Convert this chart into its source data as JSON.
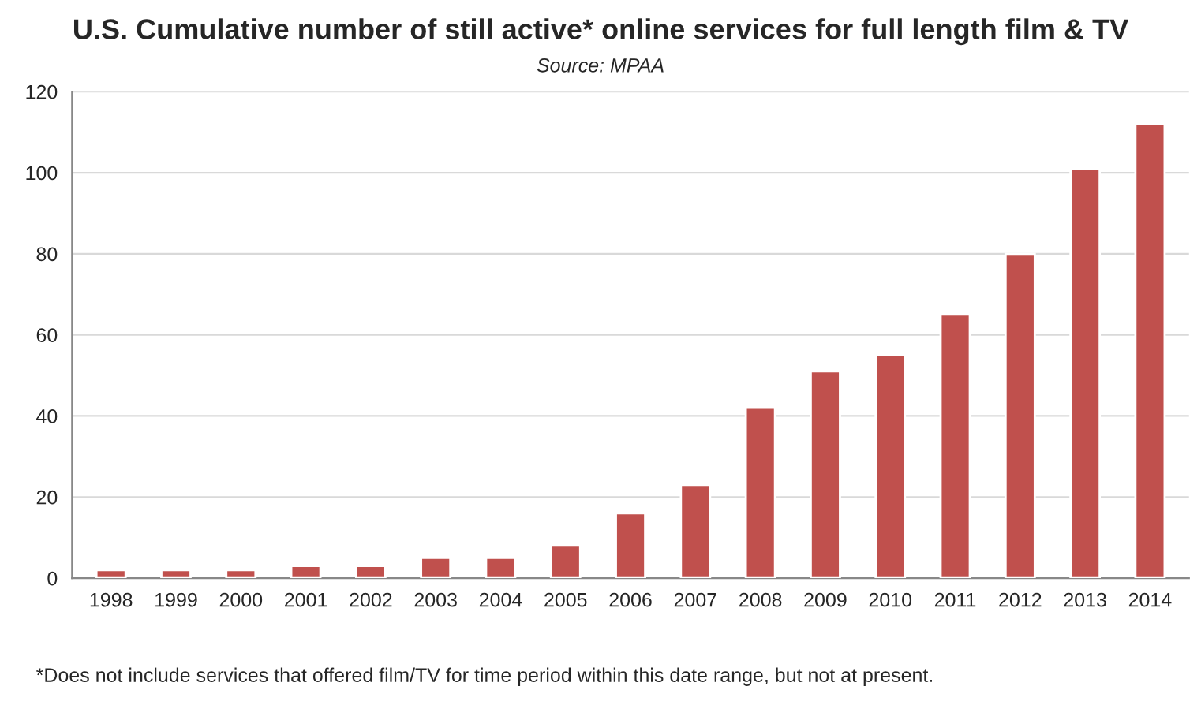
{
  "chart_data": {
    "type": "bar",
    "title": "U.S. Cumulative number of still active* online services for full length film & TV",
    "subtitle": "Source: MPAA",
    "categories": [
      "1998",
      "1999",
      "2000",
      "2001",
      "2002",
      "2003",
      "2004",
      "2005",
      "2006",
      "2007",
      "2008",
      "2009",
      "2010",
      "2011",
      "2012",
      "2013",
      "2014"
    ],
    "values": [
      2,
      2,
      2,
      3,
      3,
      5,
      5,
      8,
      16,
      23,
      42,
      51,
      55,
      65,
      80,
      101,
      112
    ],
    "color": "#c0504d",
    "ylim": [
      0,
      120
    ],
    "yticks": [
      0,
      20,
      40,
      60,
      80,
      100,
      120
    ],
    "grid": "y",
    "annotations": [
      "*Does not include services that offered film/TV for time period within this date range, but not at present."
    ]
  }
}
